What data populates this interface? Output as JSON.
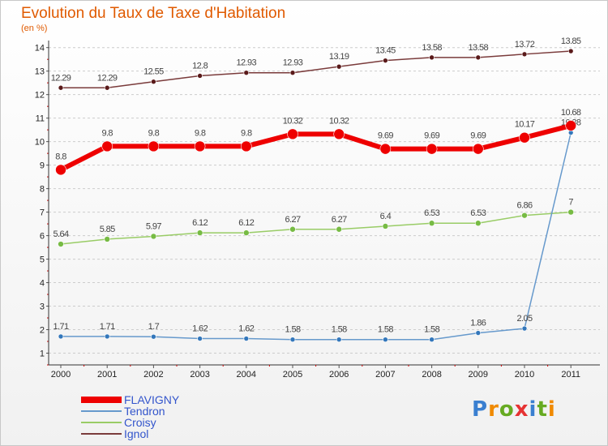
{
  "chart_data": {
    "type": "line",
    "title": "Evolution du Taux de Taxe d'Habitation",
    "subtitle": "(en %)",
    "x": [
      "2000",
      "2001",
      "2002",
      "2003",
      "2004",
      "2005",
      "2006",
      "2007",
      "2008",
      "2009",
      "2010",
      "2011"
    ],
    "ylim": [
      0.5,
      14.3
    ],
    "yticks": [
      1,
      2,
      3,
      4,
      5,
      6,
      7,
      8,
      9,
      10,
      11,
      12,
      13,
      14
    ],
    "grid": "horizontal dashed",
    "legend_position": "bottom-left",
    "series": [
      {
        "name": "Ignol",
        "color": "#7a3b3b",
        "point_color": "#5a1a1a",
        "width": 1.5,
        "radius": 3,
        "values": [
          12.29,
          12.29,
          12.55,
          12.8,
          12.93,
          12.93,
          13.19,
          13.45,
          13.58,
          13.58,
          13.72,
          13.85
        ],
        "labels": [
          "12.29",
          "12.29",
          "12.55",
          "12.8",
          "12.93",
          "12.93",
          "13.19",
          "13.45",
          "13.58",
          "13.58",
          "13.72",
          "13.85"
        ]
      },
      {
        "name": "Croisy",
        "color": "#99cc66",
        "point_color": "#77bb44",
        "width": 1.5,
        "radius": 3.5,
        "values": [
          5.64,
          5.85,
          5.97,
          6.12,
          6.12,
          6.27,
          6.27,
          6.4,
          6.53,
          6.53,
          6.86,
          7.0
        ],
        "labels": [
          "5.64",
          "5.85",
          "5.97",
          "6.12",
          "6.12",
          "6.27",
          "6.27",
          "6.4",
          "6.53",
          "6.53",
          "6.86",
          "7"
        ]
      },
      {
        "name": "Tendron",
        "color": "#6699cc",
        "point_color": "#3377bb",
        "width": 1.5,
        "radius": 3,
        "values": [
          1.71,
          1.71,
          1.7,
          1.62,
          1.62,
          1.58,
          1.58,
          1.58,
          1.58,
          1.86,
          2.05,
          10.38
        ],
        "labels": [
          "1.71",
          "1.71",
          "1.7",
          "1.62",
          "1.62",
          "1.58",
          "1.58",
          "1.58",
          "1.58",
          "1.86",
          "2.05",
          "10.38"
        ]
      },
      {
        "name": "FLAVIGNY",
        "color": "#ee0000",
        "point_color": "#ee0000",
        "width": 6,
        "radius": 6.5,
        "values": [
          8.8,
          9.8,
          9.8,
          9.8,
          9.8,
          10.32,
          10.32,
          9.69,
          9.69,
          9.69,
          10.17,
          10.68
        ],
        "labels": [
          "8.8",
          "9.8",
          "9.8",
          "9.8",
          "9.8",
          "10.32",
          "10.32",
          "9.69",
          "9.69",
          "9.69",
          "10.17",
          "10.68"
        ]
      }
    ],
    "legend": [
      "FLAVIGNY",
      "Tendron",
      "Croisy",
      "Ignol"
    ]
  },
  "logo": {
    "letters": [
      "P",
      "r",
      "o",
      "x",
      "i",
      "t",
      "i"
    ],
    "colors": [
      "#3a7fd0",
      "#f08a00",
      "#66aa22",
      "#e63333",
      "#3a7fd0",
      "#66aa22",
      "#f08a00"
    ]
  }
}
